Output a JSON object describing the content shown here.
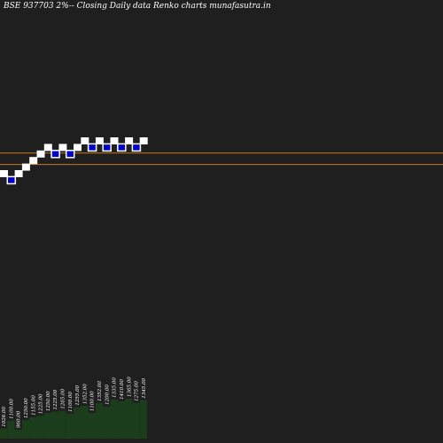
{
  "title": "BSE 937703 2%-- Closing Daily data  Renko  charts munafasutra.in",
  "colors": {
    "background": "#1f1f1f",
    "up_brick": "#ffffff",
    "down_brick": "#0000cc",
    "down_brick_border": "#ffffff",
    "reference_line": "#c8781e",
    "volume_bar": "#1c3d1c",
    "volume_label": "#ffffff"
  },
  "chart_data": {
    "type": "renko",
    "title": "BSE 937703 2%-- Closing Daily data  Renko  charts munafasutra.in",
    "bricks": [
      {
        "level": 0,
        "dir": "up"
      },
      {
        "level": -1,
        "dir": "down"
      },
      {
        "level": 0,
        "dir": "up"
      },
      {
        "level": 1,
        "dir": "up"
      },
      {
        "level": 2,
        "dir": "up"
      },
      {
        "level": 3,
        "dir": "up"
      },
      {
        "level": 4,
        "dir": "up"
      },
      {
        "level": 3,
        "dir": "down"
      },
      {
        "level": 4,
        "dir": "up"
      },
      {
        "level": 3,
        "dir": "down"
      },
      {
        "level": 4,
        "dir": "up"
      },
      {
        "level": 5,
        "dir": "up"
      },
      {
        "level": 4,
        "dir": "down"
      },
      {
        "level": 5,
        "dir": "up"
      },
      {
        "level": 4,
        "dir": "down"
      },
      {
        "level": 5,
        "dir": "up"
      },
      {
        "level": 4,
        "dir": "down"
      },
      {
        "level": 5,
        "dir": "up"
      },
      {
        "level": 4,
        "dir": "down"
      },
      {
        "level": 5,
        "dir": "up"
      }
    ],
    "reference_lines": [
      3.15,
      1.4
    ],
    "volume": [
      {
        "label": "1026.00",
        "value": 0.28
      },
      {
        "label": "1100.00",
        "value": 0.5
      },
      {
        "label": "960.00",
        "value": 0.25
      },
      {
        "label": "1250.00",
        "value": 0.52
      },
      {
        "label": "1155.00",
        "value": 0.6
      },
      {
        "label": "1225.00",
        "value": 0.64
      },
      {
        "label": "1250.00",
        "value": 0.72
      },
      {
        "label": "1225.00",
        "value": 0.76
      },
      {
        "label": "1265.00",
        "value": 0.78
      },
      {
        "label": "1100.00",
        "value": 0.7
      },
      {
        "label": "1255.00",
        "value": 0.88
      },
      {
        "label": "1352.00",
        "value": 0.92
      },
      {
        "label": "1100.00",
        "value": 0.72
      },
      {
        "label": "1352.00",
        "value": 1.0
      },
      {
        "label": "1200.00",
        "value": 0.9
      },
      {
        "label": "1335.00",
        "value": 1.1
      },
      {
        "label": "1410.00",
        "value": 1.05
      },
      {
        "label": "1365.00",
        "value": 1.12
      },
      {
        "label": "1275.00",
        "value": 1.0
      },
      {
        "label": "1345.00",
        "value": 1.08
      }
    ]
  }
}
